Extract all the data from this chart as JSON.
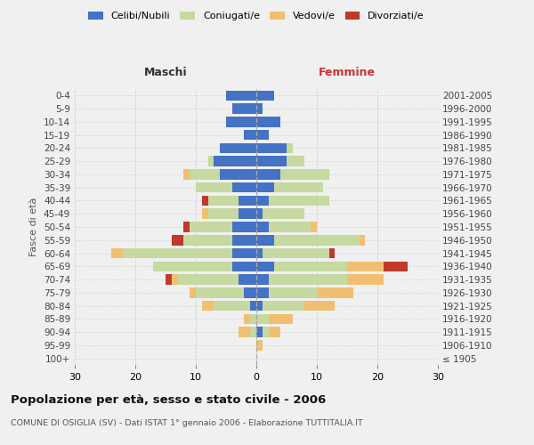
{
  "age_groups": [
    "100+",
    "95-99",
    "90-94",
    "85-89",
    "80-84",
    "75-79",
    "70-74",
    "65-69",
    "60-64",
    "55-59",
    "50-54",
    "45-49",
    "40-44",
    "35-39",
    "30-34",
    "25-29",
    "20-24",
    "15-19",
    "10-14",
    "5-9",
    "0-4"
  ],
  "birth_years": [
    "≤ 1905",
    "1906-1910",
    "1911-1915",
    "1916-1920",
    "1921-1925",
    "1926-1930",
    "1931-1935",
    "1936-1940",
    "1941-1945",
    "1946-1950",
    "1951-1955",
    "1956-1960",
    "1961-1965",
    "1966-1970",
    "1971-1975",
    "1976-1980",
    "1981-1985",
    "1986-1990",
    "1991-1995",
    "1996-2000",
    "2001-2005"
  ],
  "male": {
    "celibi": [
      0,
      0,
      0,
      0,
      1,
      2,
      3,
      4,
      4,
      4,
      4,
      3,
      3,
      4,
      6,
      7,
      6,
      2,
      5,
      4,
      5
    ],
    "coniugati": [
      0,
      0,
      1,
      1,
      6,
      8,
      10,
      13,
      18,
      8,
      7,
      5,
      5,
      6,
      5,
      1,
      0,
      0,
      0,
      0,
      0
    ],
    "vedovi": [
      0,
      0,
      2,
      1,
      2,
      1,
      1,
      0,
      2,
      0,
      0,
      1,
      0,
      0,
      1,
      0,
      0,
      0,
      0,
      0,
      0
    ],
    "divorziati": [
      0,
      0,
      0,
      0,
      0,
      0,
      1,
      0,
      0,
      2,
      1,
      0,
      1,
      0,
      0,
      0,
      0,
      0,
      0,
      0,
      0
    ]
  },
  "female": {
    "nubili": [
      0,
      0,
      1,
      0,
      1,
      2,
      2,
      3,
      1,
      3,
      2,
      1,
      2,
      3,
      4,
      5,
      5,
      2,
      4,
      1,
      3
    ],
    "coniugate": [
      0,
      0,
      1,
      2,
      7,
      8,
      13,
      12,
      11,
      14,
      7,
      7,
      10,
      8,
      8,
      3,
      1,
      0,
      0,
      0,
      0
    ],
    "vedove": [
      0,
      1,
      2,
      4,
      5,
      6,
      6,
      6,
      0,
      1,
      1,
      0,
      0,
      0,
      0,
      0,
      0,
      0,
      0,
      0,
      0
    ],
    "divorziate": [
      0,
      0,
      0,
      0,
      0,
      0,
      0,
      4,
      1,
      0,
      0,
      0,
      0,
      0,
      0,
      0,
      0,
      0,
      0,
      0,
      0
    ]
  },
  "colors": {
    "celibi": "#4472c4",
    "coniugati": "#c5d9a0",
    "vedovi": "#f0c070",
    "divorziati": "#c0392b"
  },
  "xlim": 30,
  "title": "Popolazione per età, sesso e stato civile - 2006",
  "subtitle": "COMUNE DI OSIGLIA (SV) - Dati ISTAT 1° gennaio 2006 - Elaborazione TUTTITALIA.IT",
  "ylabel_left": "Fasce di età",
  "xlabel_left": "Maschi",
  "xlabel_right": "Femmine",
  "background_color": "#f0f0f0",
  "grid_color": "#cccccc"
}
